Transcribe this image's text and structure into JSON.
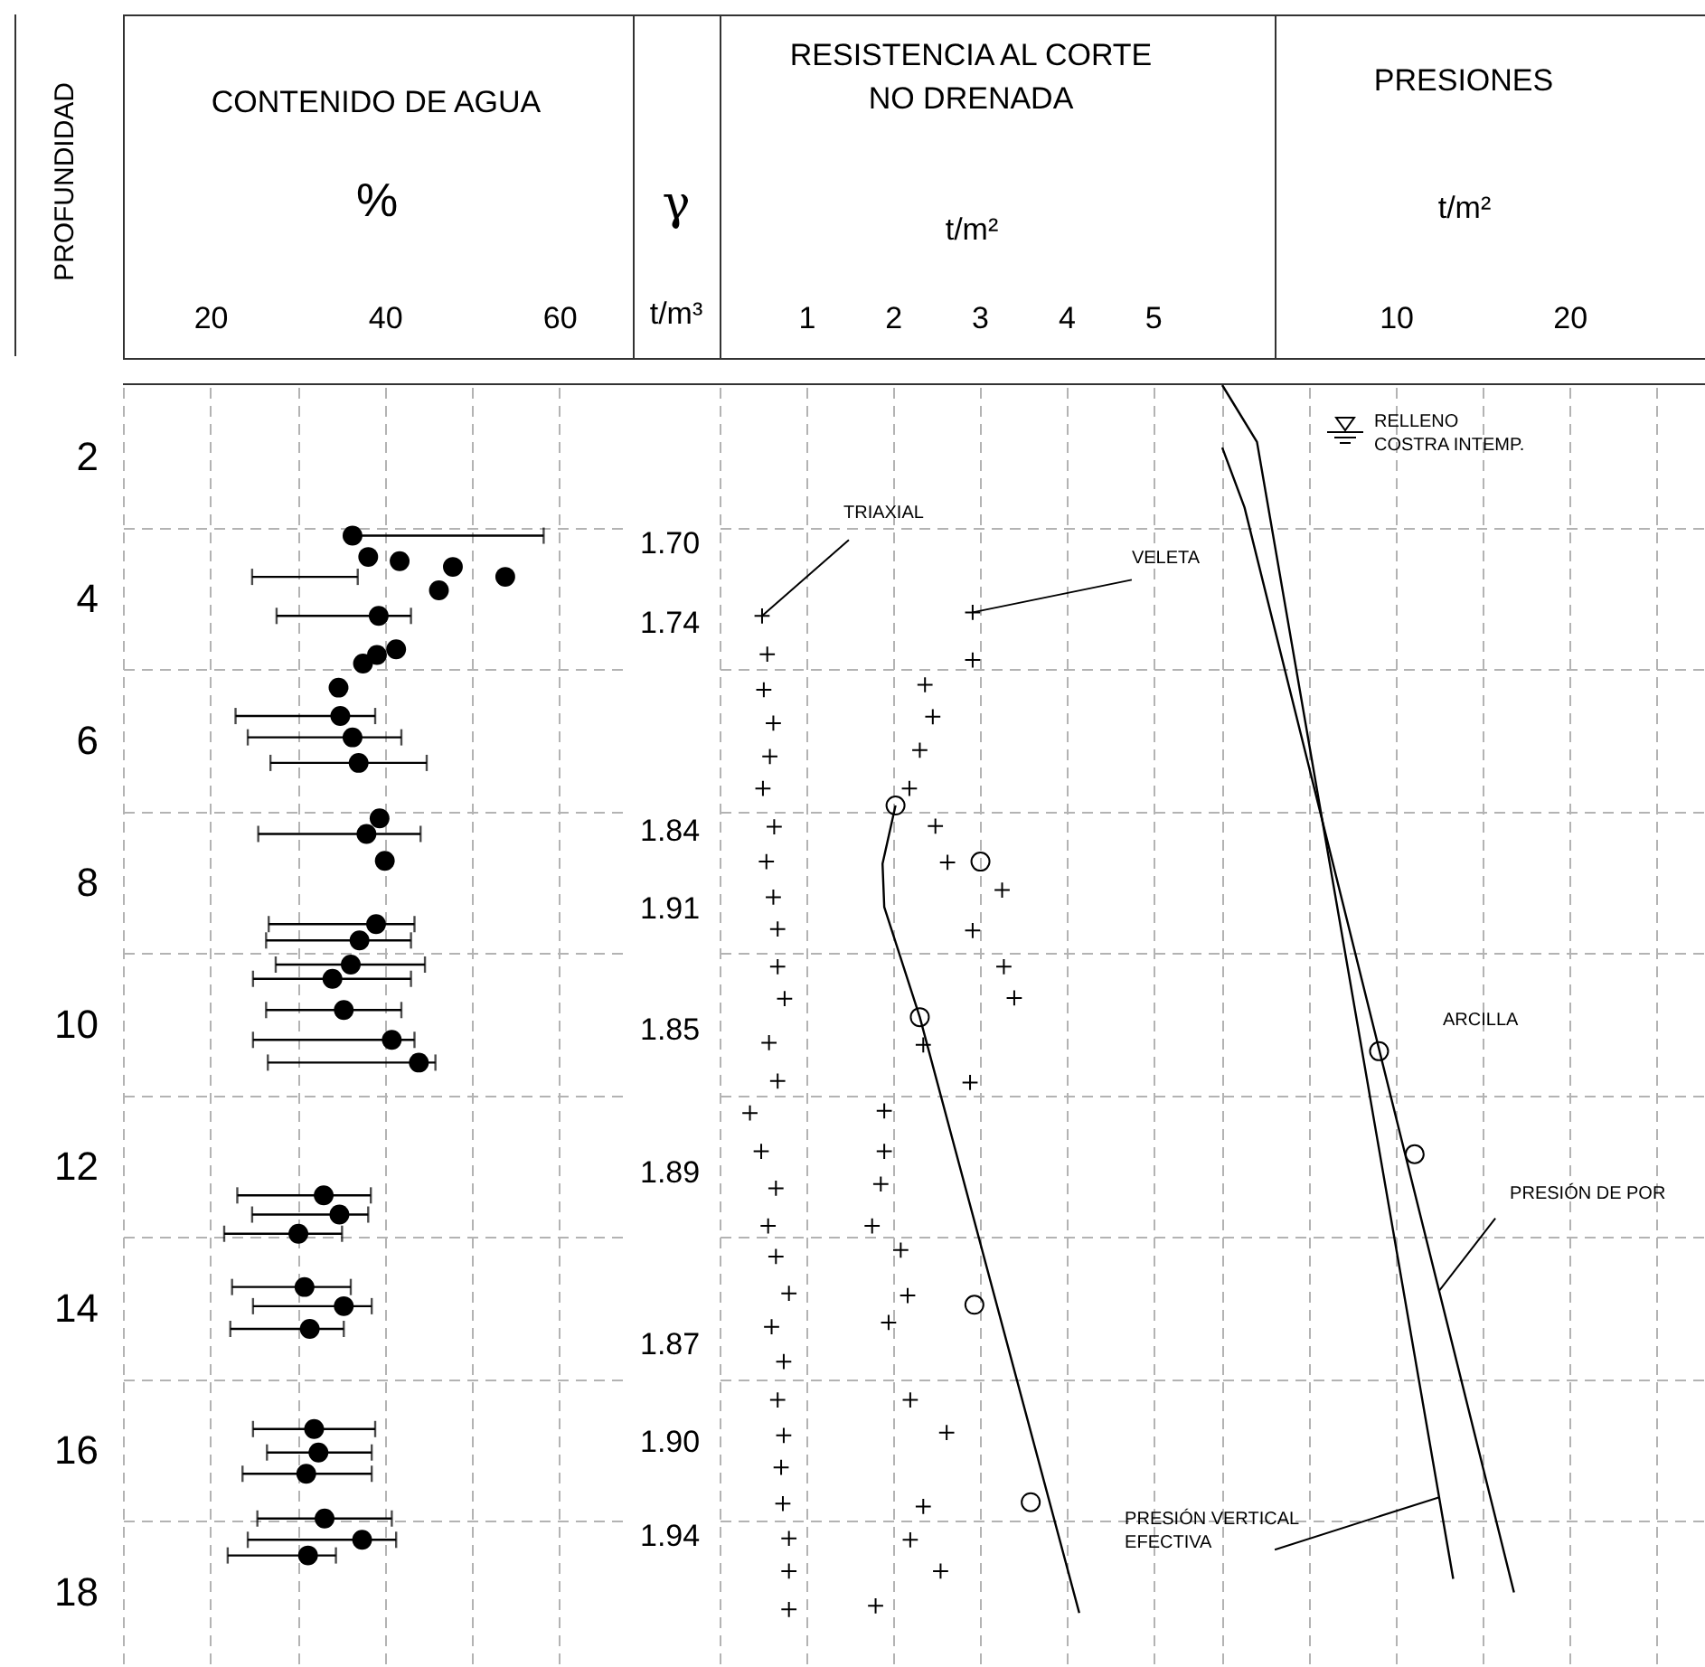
{
  "chart_data": [
    {
      "type": "scatter",
      "title": "CONTENIDO DE AGUA",
      "xlabel": "%",
      "ylabel": "PROFUNDIDAD",
      "xlim": [
        10,
        68
      ],
      "xticks": [
        {
          "value": 10,
          "label": null
        },
        20,
        {
          "value": 30,
          "label": null
        },
        40,
        {
          "value": 50,
          "label": null
        },
        60
      ],
      "ylim": [
        19,
        1
      ],
      "yticks": [
        2,
        {
          "value": 3,
          "label": null
        },
        4,
        {
          "value": 5,
          "label": null
        },
        6,
        {
          "value": 7,
          "label": null
        },
        8,
        {
          "value": 9,
          "label": null
        },
        10,
        {
          "value": 11,
          "label": null
        },
        12,
        {
          "value": 13,
          "label": null
        },
        14,
        {
          "value": 15,
          "label": null
        },
        16,
        {
          "value": 17,
          "label": null
        },
        18
      ],
      "grid": true,
      "series": [
        {
          "marker": "circle",
          "color": "#000000",
          "x": [
            36.3,
            38.1,
            41.7,
            47.8,
            53.8,
            46.2,
            39.3,
            41.3,
            39.1,
            37.5,
            34.7,
            34.9,
            36.3,
            37.0,
            39.4,
            37.9,
            40.0,
            39.0,
            37.1,
            36.1,
            34.0,
            35.3,
            40.8,
            43.9,
            33.0,
            34.8,
            30.1,
            30.8,
            35.3,
            31.4,
            31.9,
            32.4,
            31.0,
            33.1,
            37.4,
            31.2
          ],
          "values": [
            3.12,
            3.42,
            3.48,
            3.56,
            3.7,
            3.89,
            4.25,
            4.72,
            4.8,
            4.92,
            5.26,
            5.66,
            5.96,
            6.32,
            7.1,
            7.32,
            7.7,
            8.59,
            8.82,
            9.16,
            9.36,
            9.8,
            10.22,
            10.54,
            12.41,
            12.68,
            12.95,
            13.7,
            13.97,
            14.29,
            15.7,
            16.03,
            16.33,
            16.96,
            17.26,
            17.48
          ],
          "xerrors": [
            [
              36.0,
              58.2
            ],
            null,
            null,
            null,
            [
              24.8,
              36.9
            ],
            null,
            [
              27.6,
              43.0
            ],
            null,
            null,
            null,
            null,
            [
              22.9,
              38.9
            ],
            [
              24.3,
              41.9
            ],
            [
              26.9,
              44.8
            ],
            null,
            [
              25.5,
              44.1
            ],
            null,
            [
              26.7,
              43.4
            ],
            [
              26.4,
              43.0
            ],
            [
              27.5,
              44.6
            ],
            [
              24.9,
              43.0
            ],
            [
              26.4,
              41.9
            ],
            [
              24.9,
              43.4
            ],
            [
              26.6,
              45.8
            ],
            [
              23.1,
              38.4
            ],
            [
              24.8,
              38.1
            ],
            [
              21.6,
              35.1
            ],
            [
              22.5,
              36.1
            ],
            [
              24.9,
              38.5
            ],
            [
              22.3,
              35.3
            ],
            [
              24.9,
              38.9
            ],
            [
              26.5,
              38.5
            ],
            [
              23.7,
              38.5
            ],
            [
              25.4,
              40.8
            ],
            [
              24.3,
              41.3
            ],
            [
              22.0,
              34.4
            ]
          ]
        }
      ]
    },
    {
      "type": "scatter",
      "title": "RESISTENCIA AL CORTE\nNO DRENADA",
      "xlabel": "t/m²",
      "xlim": [
        0,
        5.8
      ],
      "xticks": [
        {
          "value": 0,
          "label": null
        },
        1,
        2,
        3,
        4,
        5
      ],
      "ylim": [
        19,
        1
      ],
      "yticks": [
        2,
        {
          "value": 3,
          "label": null
        },
        4,
        {
          "value": 5,
          "label": null
        },
        6,
        {
          "value": 7,
          "label": null
        },
        8,
        {
          "value": 9,
          "label": null
        },
        10,
        {
          "value": 11,
          "label": null
        },
        12,
        {
          "value": 13,
          "label": null
        },
        14,
        {
          "value": 15,
          "label": null
        },
        16,
        {
          "value": 17,
          "label": null
        },
        18
      ],
      "grid": true,
      "tick_labels": "x",
      "series": [
        {
          "marker": "cross",
          "color": "#000000",
          "x": [
            0.49,
            0.55,
            0.51,
            0.62,
            0.58,
            0.5,
            0.63,
            0.54,
            0.62,
            0.67,
            0.67,
            0.75,
            0.57,
            0.67,
            0.35,
            0.48,
            0.65,
            0.56,
            0.65,
            0.8,
            0.6,
            0.74,
            0.67,
            0.74,
            0.71,
            0.73,
            0.8,
            0.8,
            0.8
          ],
          "values": [
            4.25,
            4.79,
            5.29,
            5.76,
            6.23,
            6.68,
            7.22,
            7.71,
            8.21,
            8.66,
            9.19,
            9.64,
            10.26,
            10.8,
            11.25,
            11.79,
            12.31,
            12.84,
            13.27,
            13.79,
            14.26,
            14.75,
            15.29,
            15.79,
            16.24,
            16.75,
            17.24,
            17.7,
            18.24
          ]
        },
        {
          "marker": "cross",
          "color": "#000000",
          "x": [
            2.92,
            2.92,
            2.37,
            2.46,
            2.31,
            2.19,
            2.49,
            2.63,
            3.26,
            2.92,
            3.28,
            3.4,
            2.35,
            2.89,
            1.9,
            1.9,
            1.86,
            1.76,
            2.09,
            2.17,
            1.95,
            2.2,
            2.62,
            2.35,
            2.2,
            2.55,
            1.8
          ],
          "values": [
            4.2,
            4.87,
            5.22,
            5.67,
            6.14,
            6.68,
            7.21,
            7.72,
            8.11,
            8.68,
            9.19,
            9.63,
            10.29,
            10.82,
            11.22,
            11.79,
            12.25,
            12.84,
            13.18,
            13.82,
            14.2,
            15.29,
            15.75,
            16.79,
            17.26,
            17.7,
            18.19
          ]
        },
        {
          "marker": "circle",
          "color": "#000000",
          "x": [
            2.03,
            3.01,
            2.31,
            2.94,
            3.59
          ],
          "values": [
            6.92,
            7.71,
            9.9,
            13.95,
            16.73
          ]
        },
        {
          "type": "line",
          "color": "#000000",
          "x": [
            2.03,
            1.88,
            1.9,
            2.31,
            4.15
          ],
          "values": [
            6.92,
            7.74,
            8.35,
            9.9,
            18.29
          ]
        }
      ],
      "annotations": [
        {
          "text": "TRIAXIAL",
          "x": 0.49,
          "y": 4.25
        },
        {
          "text": "VELETA",
          "x": 2.92,
          "y": 4.2
        },
        "γ",
        "t/m³",
        "1.70",
        "1.74",
        "1.84",
        "1.91",
        "1.85",
        "1.89",
        "1.87",
        "1.90",
        "1.94"
      ]
    },
    {
      "type": "line",
      "title": "PRESIONES",
      "xlabel": "t/m²",
      "xlim": [
        0,
        27.8
      ],
      "xticks": [
        {
          "value": 0,
          "label": null
        },
        {
          "value": 5,
          "label": null
        },
        10,
        {
          "value": 15,
          "label": null
        },
        20,
        {
          "value": 25,
          "label": null
        }
      ],
      "ylim": [
        19,
        1
      ],
      "yticks": [
        2,
        {
          "value": 3,
          "label": null
        },
        4,
        {
          "value": 5,
          "label": null
        },
        6,
        {
          "value": 7,
          "label": null
        },
        8,
        {
          "value": 9,
          "label": null
        },
        10,
        {
          "value": 11,
          "label": null
        },
        12,
        {
          "value": 13,
          "label": null
        },
        14,
        {
          "value": 15,
          "label": null
        },
        16,
        {
          "value": 17,
          "label": null
        },
        18
      ],
      "grid": true,
      "tick_labels": "x",
      "series": [
        {
          "color": "#000000",
          "x": [
            0,
            2.0,
            13.3
          ],
          "values": [
            1.0,
            1.8,
            17.81
          ]
        },
        {
          "color": "#000000",
          "x": [
            0,
            1.28,
            16.8
          ],
          "values": [
            1.88,
            2.72,
            18.0
          ]
        },
        {
          "type": "scatter",
          "marker": "circle",
          "color": "#000000",
          "x": [
            9.03,
            11.08
          ],
          "values": [
            10.38,
            11.83
          ]
        }
      ],
      "annotations": [
        "RELLENO\nCOSTRA INTEMP.",
        "ARCILLA",
        {
          "text": "PRESIÓN DE POR",
          "x": 12.5,
          "y": 13.75
        },
        {
          "text": "PRESIÓN VERTICAL\nEFECTIVA",
          "x": 12.5,
          "y": 16.66
        }
      ]
    }
  ]
}
